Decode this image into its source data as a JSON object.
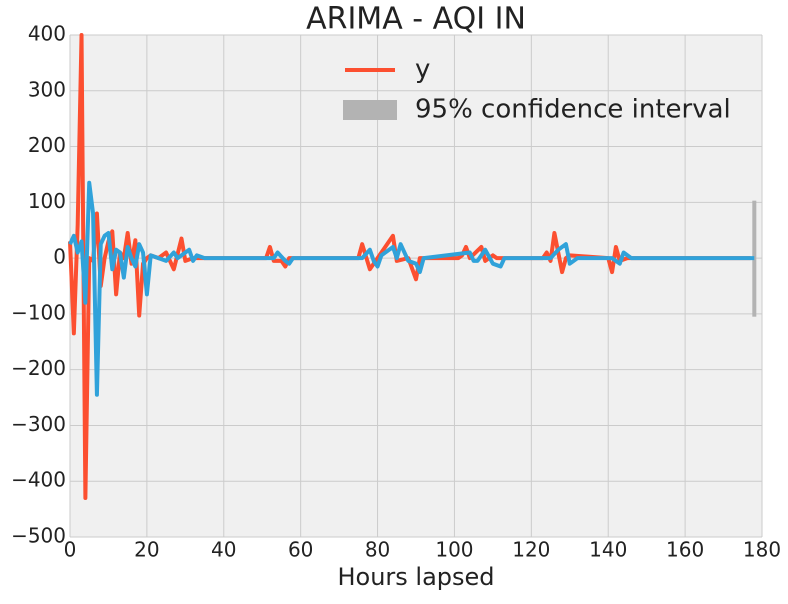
{
  "chart_data": {
    "type": "line",
    "title": "ARIMA - AQI IN",
    "x_label": "Hours lapsed",
    "xlim": [
      0,
      180
    ],
    "xticks": [
      0,
      20,
      40,
      60,
      80,
      100,
      120,
      140,
      160,
      180
    ],
    "ylim": [
      -500,
      400
    ],
    "yticks": [
      {
        "value": -500,
        "label": "−500"
      },
      {
        "value": -400,
        "label": "−400"
      },
      {
        "value": -300,
        "label": "−300"
      },
      {
        "value": -200,
        "label": "−200"
      },
      {
        "value": -100,
        "label": "−100"
      },
      0,
      100,
      200,
      300,
      400
    ],
    "grid": true,
    "legend": "upper right",
    "series": [
      {
        "name": "y",
        "color": "#fc4f30",
        "x": [
          0,
          1,
          2,
          3,
          4,
          5,
          6,
          7,
          8,
          9,
          10,
          11,
          12,
          13,
          14,
          15,
          16,
          17,
          18,
          19,
          20,
          21,
          23,
          25,
          27,
          29,
          30,
          32,
          51,
          52,
          53,
          55,
          56,
          57,
          75,
          76,
          78,
          80,
          84,
          85,
          88,
          90,
          91,
          101,
          102,
          103,
          104,
          107,
          108,
          110,
          111,
          123,
          124,
          125,
          126,
          128,
          129,
          130,
          140,
          141,
          142,
          143,
          145,
          177
        ],
        "values": [
          30,
          -135,
          60,
          400,
          -430,
          0,
          -5,
          80,
          -50,
          0,
          30,
          48,
          -65,
          10,
          0,
          45,
          -10,
          32,
          -103,
          -10,
          0,
          5,
          0,
          10,
          -20,
          35,
          -5,
          0,
          0,
          20,
          -5,
          -5,
          -15,
          0,
          0,
          25,
          -20,
          0,
          40,
          -5,
          0,
          -38,
          0,
          0,
          5,
          20,
          0,
          20,
          -5,
          5,
          0,
          0,
          10,
          -5,
          45,
          -25,
          0,
          5,
          0,
          -25,
          20,
          -5,
          0,
          0
        ]
      },
      {
        "color": "#30a2da",
        "x": [
          0,
          1,
          2,
          3,
          4,
          5,
          6,
          7,
          8,
          9,
          10,
          11,
          12,
          13,
          14,
          15,
          16,
          17,
          18,
          19,
          20,
          21,
          23,
          25,
          27,
          28,
          31,
          32,
          33,
          35,
          53,
          54,
          56,
          57,
          58,
          76,
          78,
          79,
          80,
          81,
          84,
          85,
          86,
          88,
          90,
          91,
          92,
          104,
          105,
          106,
          108,
          110,
          112,
          113,
          125,
          127,
          129,
          130,
          132,
          141,
          143,
          144,
          146,
          178
        ],
        "values": [
          25,
          40,
          10,
          30,
          -80,
          135,
          80,
          -245,
          25,
          40,
          45,
          -20,
          15,
          10,
          -35,
          20,
          0,
          -15,
          25,
          10,
          -65,
          5,
          0,
          -5,
          10,
          0,
          15,
          -5,
          5,
          0,
          0,
          10,
          -5,
          -10,
          0,
          0,
          15,
          -5,
          -15,
          5,
          20,
          0,
          25,
          -5,
          -10,
          -25,
          0,
          10,
          -5,
          -5,
          15,
          -10,
          -15,
          0,
          0,
          15,
          25,
          -10,
          0,
          0,
          -10,
          10,
          0,
          0
        ]
      }
    ],
    "interval": {
      "name": "95% confidence interval",
      "color": "#b3b3b3",
      "x": [
        178
      ],
      "lower": [
        -105
      ],
      "upper": [
        103
      ]
    }
  }
}
